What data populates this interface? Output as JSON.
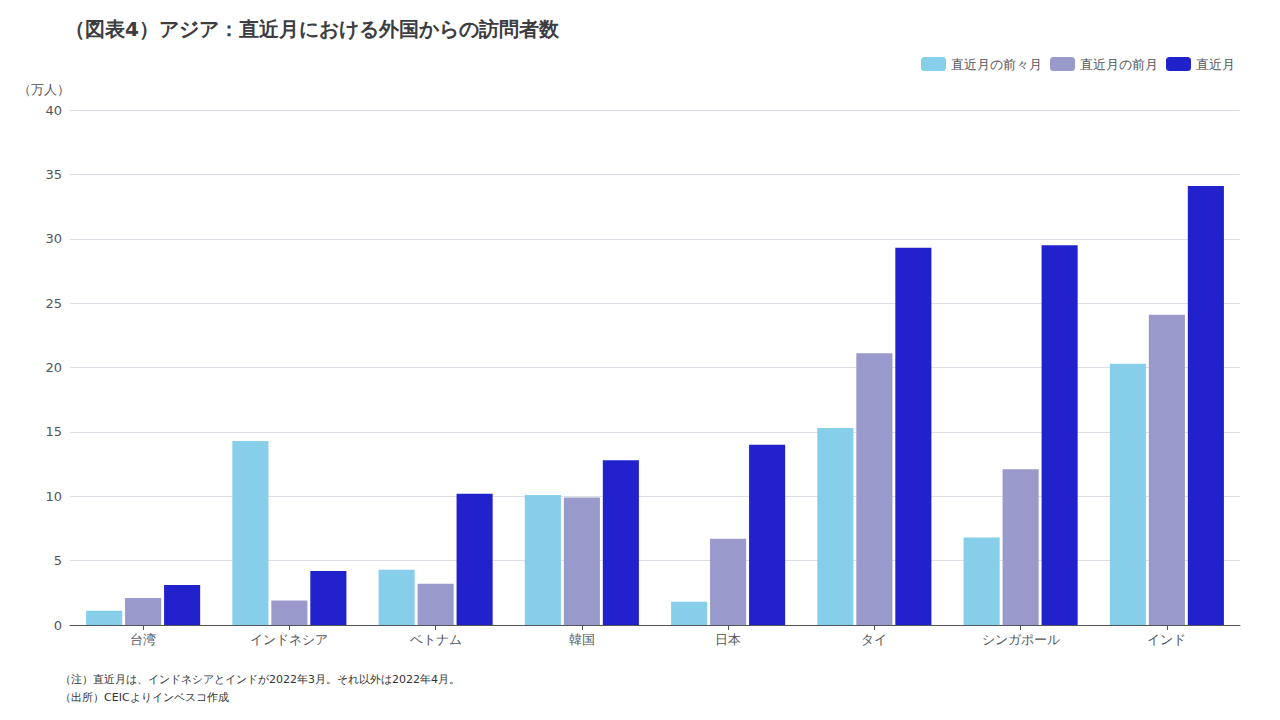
{
  "chart_data": {
    "type": "bar",
    "title": "（図表4）アジア：直近月における外国からの訪問者数",
    "ylabel": "（万人）",
    "categories": [
      "台湾",
      "インドネシア",
      "ベトナム",
      "韓国",
      "日本",
      "タイ",
      "シンガポール",
      "インド"
    ],
    "series": [
      {
        "name": "直近月の前々月",
        "color": "#87CEEB",
        "values": [
          1.1,
          14.3,
          4.3,
          10.1,
          1.8,
          15.3,
          6.8,
          20.3
        ]
      },
      {
        "name": "直近月の前月",
        "color": "#9999CC",
        "values": [
          2.1,
          1.9,
          3.2,
          9.9,
          6.7,
          21.1,
          12.1,
          24.1
        ]
      },
      {
        "name": "直近月",
        "color": "#2222CC",
        "values": [
          3.1,
          4.2,
          10.2,
          12.8,
          14.0,
          29.3,
          29.5,
          34.1
        ]
      }
    ],
    "ylim": [
      0,
      40
    ],
    "yticks": [
      0,
      5,
      10,
      15,
      20,
      25,
      30,
      35,
      40
    ],
    "grid": true,
    "legend": "upper right",
    "annotations": [
      "（注）直近月は、インドネシアとインドが2022年3月。それ以外は2022年4月。",
      "（出所）CEICよりインベスコ作成"
    ]
  }
}
